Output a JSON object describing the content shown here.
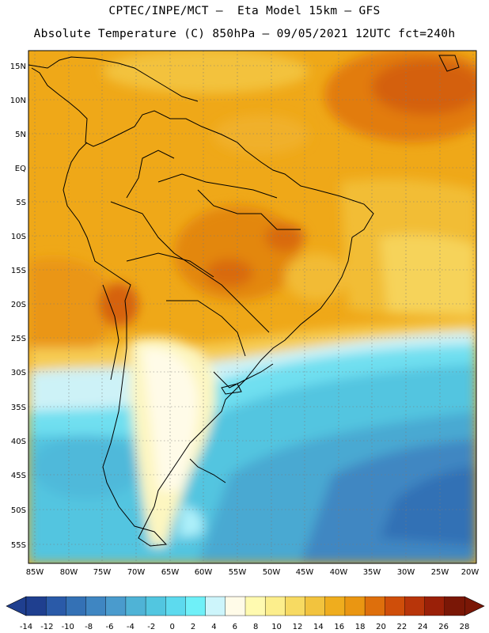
{
  "header": {
    "line1": "CPTEC/INPE/MCT –  Eta Model 15km – GFS",
    "line2": "Absolute Temperature (C) 850hPa – 09/05/2021 12UTC fct=240h"
  },
  "axes": {
    "lat_labels": [
      "15N",
      "10N",
      "5N",
      "EQ",
      "5S",
      "10S",
      "15S",
      "20S",
      "25S",
      "30S",
      "35S",
      "40S",
      "45S",
      "50S",
      "55S"
    ],
    "lon_labels": [
      "85W",
      "80W",
      "75W",
      "70W",
      "65W",
      "60W",
      "55W",
      "50W",
      "45W",
      "40W",
      "35W",
      "30W",
      "25W",
      "20W"
    ]
  },
  "colorbar": {
    "labels": [
      "-14",
      "-12",
      "-10",
      "-8",
      "-6",
      "-4",
      "-2",
      "0",
      "2",
      "4",
      "6",
      "8",
      "10",
      "12",
      "14",
      "16",
      "18",
      "20",
      "22",
      "24",
      "26",
      "28"
    ],
    "colors": [
      "#1f3f8f",
      "#2a5aa8",
      "#3471b5",
      "#3f86c2",
      "#4a9bcd",
      "#4fb3d6",
      "#52c6e0",
      "#5ddaee",
      "#6ff0f8",
      "#cdf5fb",
      "#fffbe8",
      "#fffab0",
      "#fcee8c",
      "#f7da62",
      "#f2c33e",
      "#efad1e",
      "#ea9612",
      "#de6f0c",
      "#cf4e0a",
      "#b8350a",
      "#9a2008",
      "#7a1706"
    ]
  },
  "colors": {
    "ocean_cold": "#2e5fa5",
    "ocean_cyan": "#4fc6e2",
    "land_warm": "#ef9f12",
    "hot_core": "#da6a0c",
    "border": "#000000"
  }
}
